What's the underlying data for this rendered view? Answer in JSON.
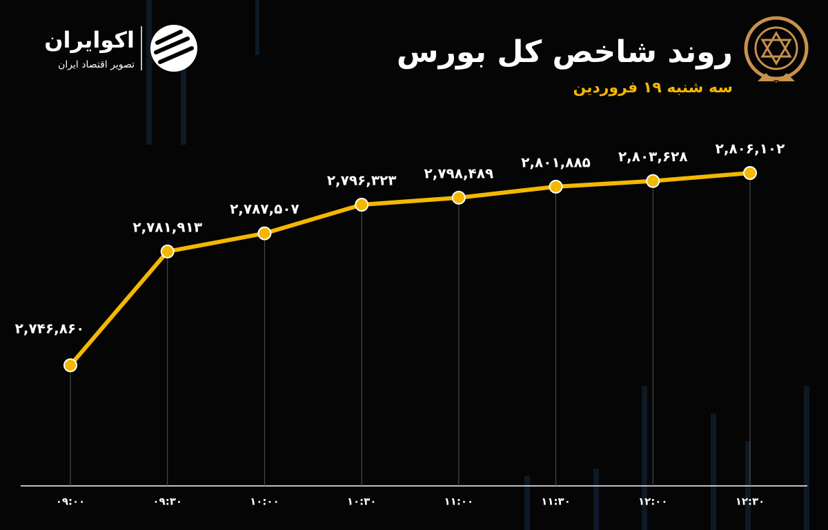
{
  "brand": {
    "name": "اکوایران",
    "tagline": "تصویر اقتصاد ایران"
  },
  "chart_data": {
    "type": "line",
    "title": "روند شاخص کل بورس",
    "subtitle": "سه شنبه ۱۹ فروردین",
    "categories": [
      "۰۹:۰۰",
      "۰۹:۳۰",
      "۱۰:۰۰",
      "۱۰:۳۰",
      "۱۱:۰۰",
      "۱۱:۳۰",
      "۱۲:۰۰",
      "۱۲:۳۰"
    ],
    "series": [
      {
        "color": "#f5b800",
        "values": [
          2746860,
          2781913,
          2787507,
          2796323,
          2798489,
          2801885,
          2803628,
          2806102
        ],
        "value_labels": [
          "۲,۷۴۶,۸۶۰",
          "۲,۷۸۱,۹۱۳",
          "۲,۷۸۷,۵۰۷",
          "۲,۷۹۶,۳۲۳",
          "۲,۷۹۸,۴۸۹",
          "۲,۸۰۱,۸۸۵",
          "۲,۸۰۳,۶۲۸",
          "۲,۸۰۶,۱۰۲"
        ]
      }
    ]
  }
}
